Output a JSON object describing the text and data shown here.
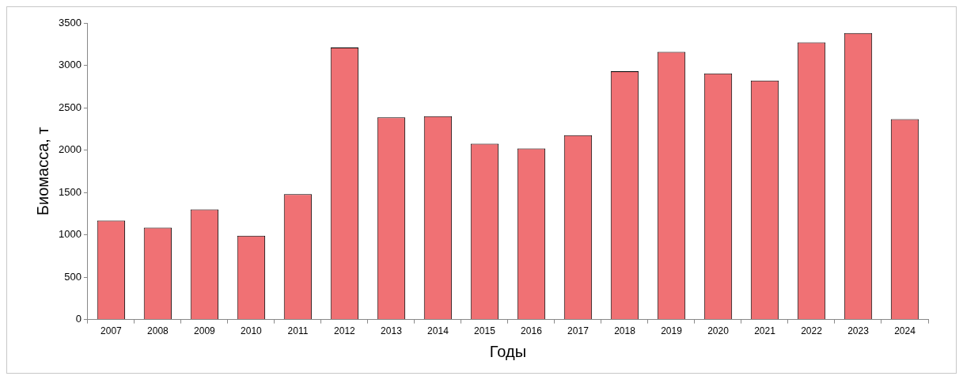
{
  "chart_data": {
    "type": "bar",
    "xlabel": "Годы",
    "ylabel": "Биомасса, т",
    "categories": [
      "2007",
      "2008",
      "2009",
      "2010",
      "2011",
      "2012",
      "2013",
      "2014",
      "2015",
      "2016",
      "2017",
      "2018",
      "2019",
      "2020",
      "2021",
      "2022",
      "2023",
      "2024"
    ],
    "values": [
      1170,
      1085,
      1300,
      990,
      1480,
      3210,
      2385,
      2400,
      2075,
      2020,
      2175,
      2930,
      3160,
      2905,
      2820,
      3270,
      3380,
      2365
    ],
    "color": "#f07174",
    "ylim": [
      0,
      3500
    ],
    "yticks": [
      0,
      500,
      1000,
      1500,
      2000,
      2500,
      3000,
      3500
    ]
  }
}
